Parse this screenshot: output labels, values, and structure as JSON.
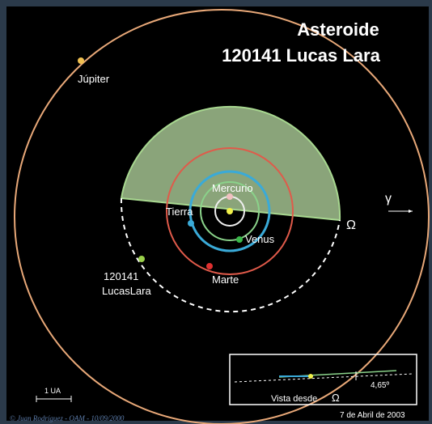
{
  "title": {
    "line1": "Asteroide",
    "line2": "120141 Lucas Lara"
  },
  "bodies": [
    {
      "label": "Júpiter"
    },
    {
      "label": "Mercurio"
    },
    {
      "label": "Tierra"
    },
    {
      "label": "Venus"
    },
    {
      "label": "Marte"
    }
  ],
  "asteroid": {
    "line1": "120141",
    "line2": "LucasLara"
  },
  "markers": {
    "gamma": "γ",
    "node": "Ω"
  },
  "scale": "1 UA",
  "inset": {
    "caption": "Vista desde",
    "symbol": "Ω",
    "angle": "4,65º"
  },
  "date": "7 de Abril de 2003",
  "credit": "© Juan Rodríguez - OAM - 10/09/2000"
}
